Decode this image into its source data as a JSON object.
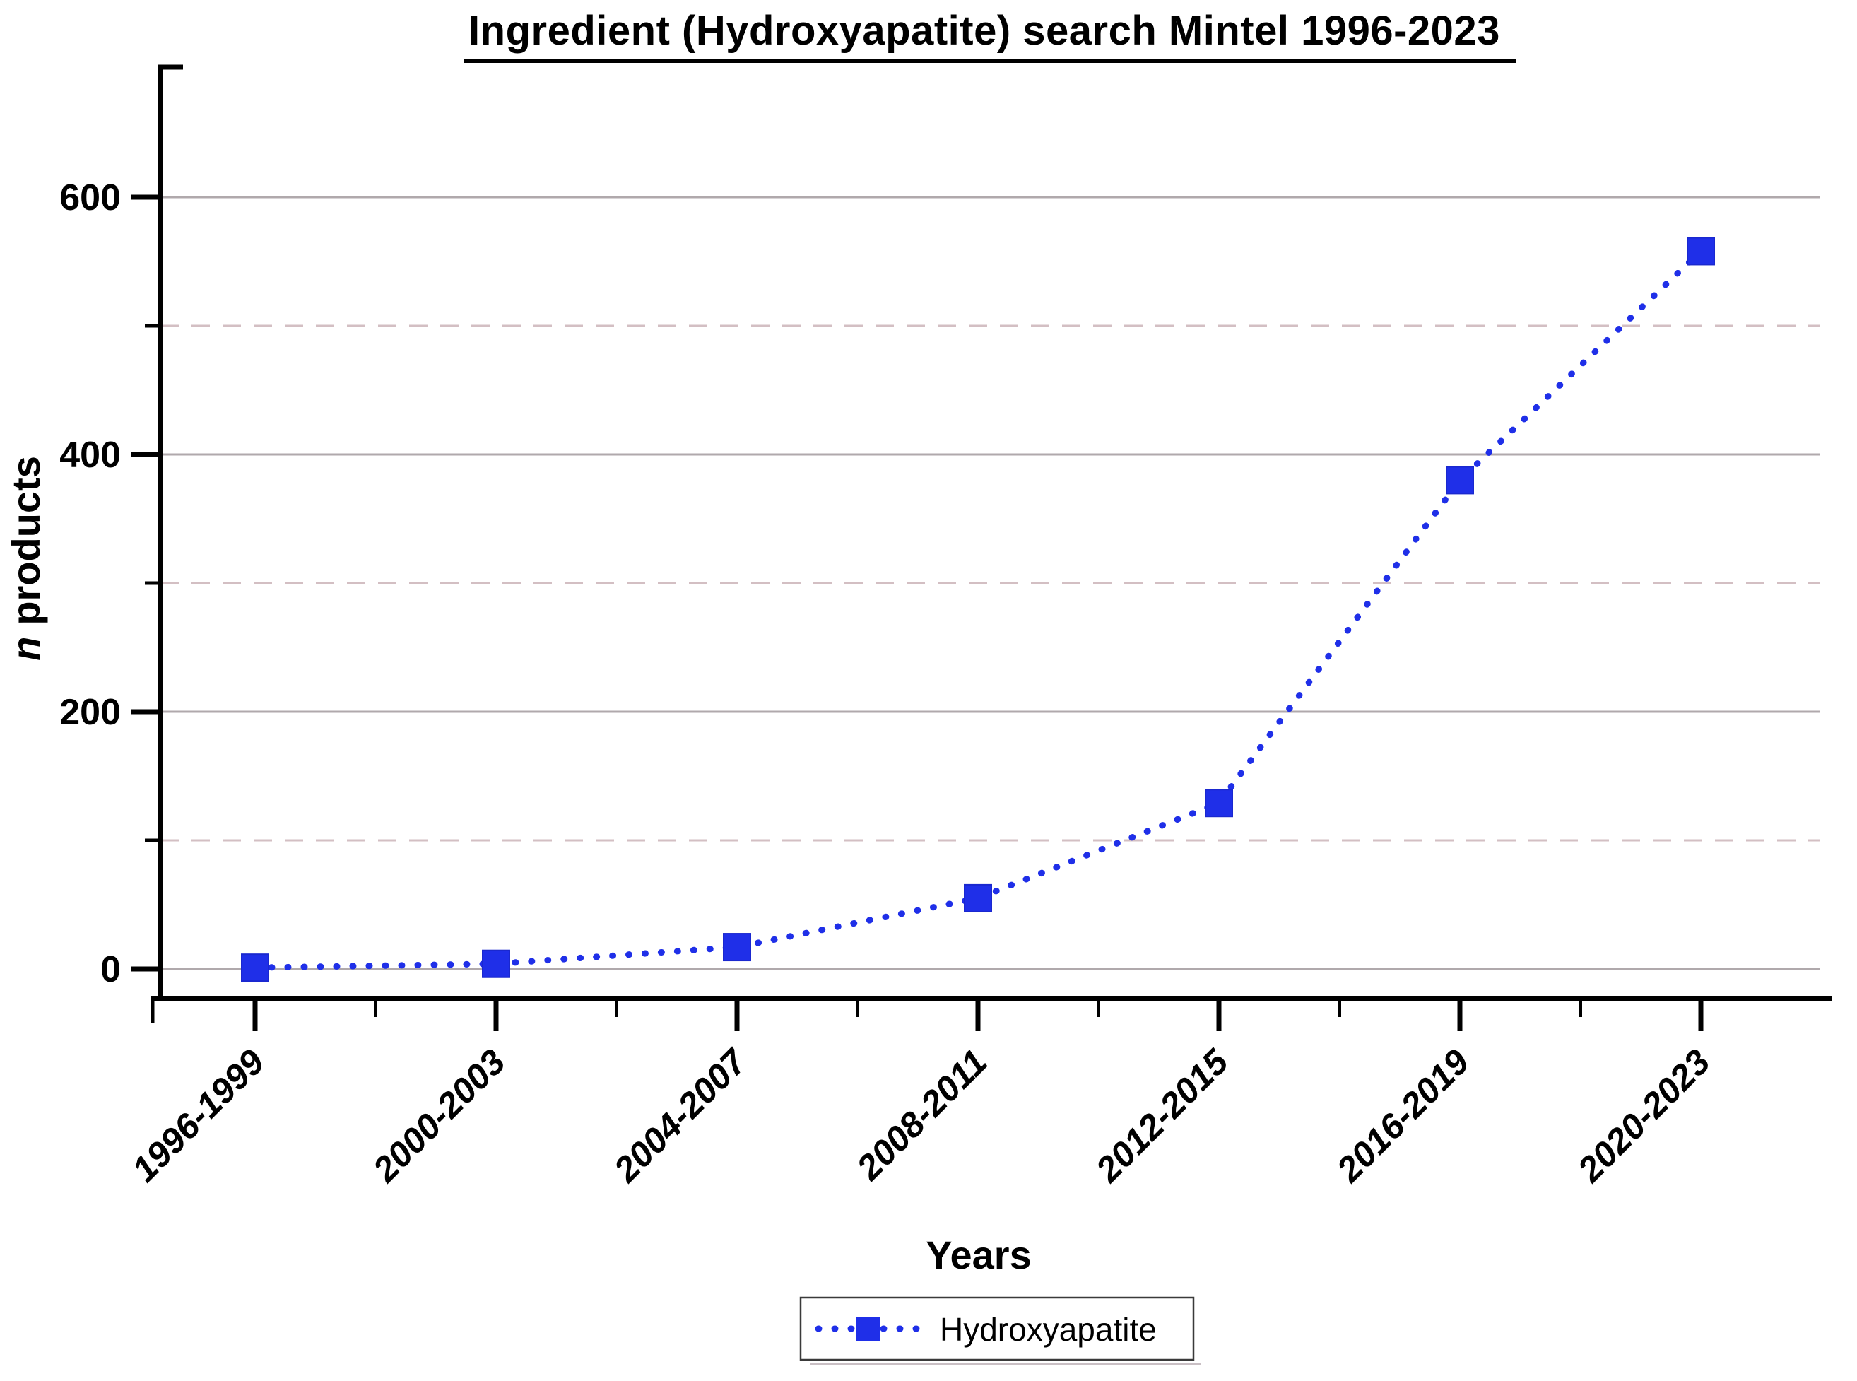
{
  "chart_data": {
    "type": "line",
    "title": "Ingredient (Hydroxyapatite) search Mintel 1996-2023",
    "xlabel": "Years",
    "ylabel": "n products",
    "ylabel_parts": {
      "italic": "n",
      "rest": "products"
    },
    "categories": [
      "1996-1999",
      "2000-2003",
      "2004-2007",
      "2008-2011",
      "2012-2015",
      "2016-2019",
      "2020-2023"
    ],
    "series": [
      {
        "name": "Hydroxyapatite",
        "values": [
          1,
          4,
          17,
          55,
          129,
          380,
          558
        ],
        "color": "#1F2FE8",
        "marker": "square",
        "line_style": "dotted"
      }
    ],
    "y_axis": {
      "major_ticks": [
        0,
        200,
        400,
        600
      ],
      "minor_ticks": [
        100,
        300,
        500
      ],
      "ylim": [
        0,
        700
      ],
      "gridline_major_style": "solid",
      "gridline_minor_style": "dashed"
    },
    "x_axis": {
      "tick_label_rotation_deg": 45
    },
    "legend": {
      "position": "bottom-center",
      "border": true,
      "entries": [
        "Hydroxyapatite"
      ]
    },
    "colors": {
      "series_blue": "#1F2FE8",
      "grid_major": "#b0a9ac",
      "grid_minor": "#d3bfc3",
      "axis": "#000000",
      "background": "#ffffff"
    }
  }
}
